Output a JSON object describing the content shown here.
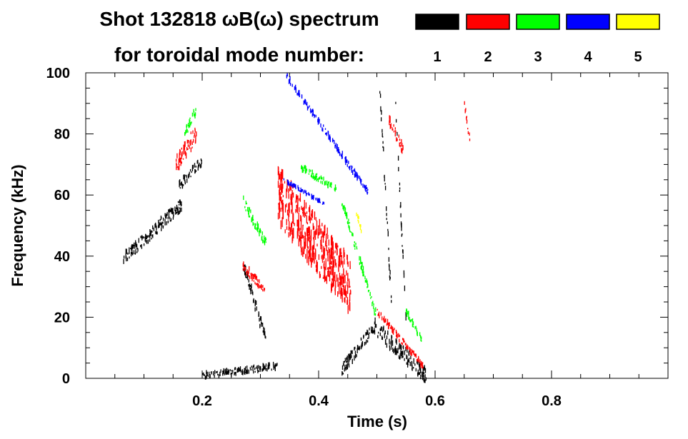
{
  "chart_data": {
    "type": "scatter",
    "title_line1": "Shot 132818 ωB(ω) spectrum",
    "title_line2": "for toroidal mode number:",
    "xlabel": "Time (s)",
    "ylabel": "Frequency (kHz)",
    "xlim": [
      0.0,
      1.0
    ],
    "ylim": [
      0,
      100
    ],
    "x_ticks": [
      {
        "value": 0.2,
        "label": "0.2"
      },
      {
        "value": 0.4,
        "label": "0.4"
      },
      {
        "value": 0.6,
        "label": "0.6"
      },
      {
        "value": 0.8,
        "label": "0.8"
      }
    ],
    "y_ticks": [
      {
        "value": 0,
        "label": "0"
      },
      {
        "value": 20,
        "label": "20"
      },
      {
        "value": 40,
        "label": "40"
      },
      {
        "value": 60,
        "label": "60"
      },
      {
        "value": 80,
        "label": "80"
      },
      {
        "value": 100,
        "label": "100"
      }
    ],
    "legend": [
      {
        "label": "1",
        "color": "#000000"
      },
      {
        "label": "2",
        "color": "#ff0000"
      },
      {
        "label": "3",
        "color": "#00ff00"
      },
      {
        "label": "4",
        "color": "#0000ff"
      },
      {
        "label": "5",
        "color": "#ffff00"
      }
    ],
    "series": [
      {
        "name": "n=1",
        "color": "#000000",
        "features": [
          {
            "t0": 0.065,
            "t1": 0.165,
            "f0": 39,
            "f1": 57,
            "spread": 4
          },
          {
            "t0": 0.16,
            "t1": 0.2,
            "f0": 63,
            "f1": 71,
            "spread": 3
          },
          {
            "t0": 0.2,
            "t1": 0.33,
            "f0": 1,
            "f1": 4,
            "spread": 2
          },
          {
            "t0": 0.27,
            "t1": 0.31,
            "f0": 38,
            "f1": 12,
            "spread": 4
          },
          {
            "t0": 0.44,
            "t1": 0.5,
            "f0": 3,
            "f1": 18,
            "spread": 4
          },
          {
            "t0": 0.5,
            "t1": 0.585,
            "f0": 16,
            "f1": 1,
            "spread": 5
          },
          {
            "t0": 0.505,
            "t1": 0.525,
            "f0": 95,
            "f1": 25,
            "spread": 5
          },
          {
            "t0": 0.53,
            "t1": 0.55,
            "f0": 98,
            "f1": 20,
            "spread": 4
          }
        ]
      },
      {
        "name": "n=2",
        "color": "#ff0000",
        "features": [
          {
            "t0": 0.155,
            "t1": 0.19,
            "f0": 70,
            "f1": 80,
            "spread": 6
          },
          {
            "t0": 0.33,
            "t1": 0.455,
            "f0": 60,
            "f1": 30,
            "spread": 18
          },
          {
            "t0": 0.27,
            "t1": 0.31,
            "f0": 37,
            "f1": 28,
            "spread": 3
          },
          {
            "t0": 0.5,
            "t1": 0.58,
            "f0": 22,
            "f1": 4,
            "spread": 2
          },
          {
            "t0": 0.52,
            "t1": 0.545,
            "f0": 85,
            "f1": 75,
            "spread": 3
          },
          {
            "t0": 0.65,
            "t1": 0.66,
            "f0": 90,
            "f1": 78,
            "spread": 3
          }
        ]
      },
      {
        "name": "n=3",
        "color": "#00ff00",
        "features": [
          {
            "t0": 0.17,
            "t1": 0.19,
            "f0": 80,
            "f1": 88,
            "spread": 3
          },
          {
            "t0": 0.37,
            "t1": 0.43,
            "f0": 69,
            "f1": 62,
            "spread": 2
          },
          {
            "t0": 0.27,
            "t1": 0.31,
            "f0": 58,
            "f1": 44,
            "spread": 3
          },
          {
            "t0": 0.44,
            "t1": 0.5,
            "f0": 58,
            "f1": 20,
            "spread": 3
          },
          {
            "t0": 0.55,
            "t1": 0.58,
            "f0": 22,
            "f1": 12,
            "spread": 2
          }
        ]
      },
      {
        "name": "n=4",
        "color": "#0000ff",
        "features": [
          {
            "t0": 0.345,
            "t1": 0.485,
            "f0": 99,
            "f1": 61,
            "spread": 2
          },
          {
            "t0": 0.34,
            "t1": 0.41,
            "f0": 65,
            "f1": 57,
            "spread": 1
          }
        ]
      },
      {
        "name": "n=5",
        "color": "#ffff00",
        "features": [
          {
            "t0": 0.465,
            "t1": 0.475,
            "f0": 54,
            "f1": 48,
            "spread": 2
          }
        ]
      }
    ]
  }
}
